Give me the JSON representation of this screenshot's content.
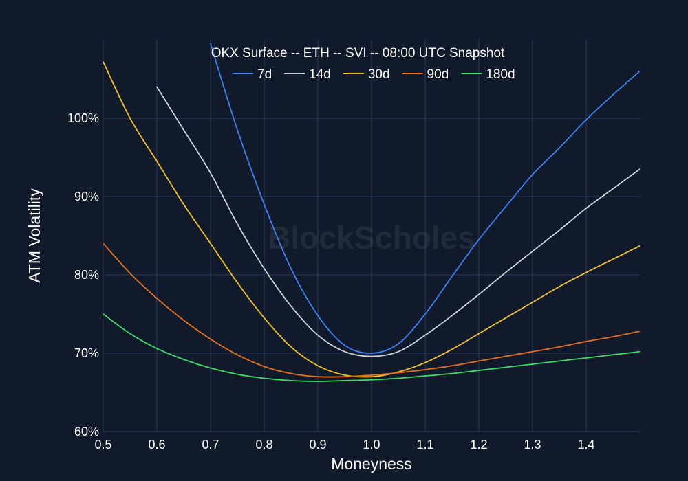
{
  "chart_data": {
    "type": "line",
    "title": "OKX Surface -- ETH -- SVI -- 08:00 UTC Snapshot",
    "xlabel": "Moneyness",
    "ylabel": "ATM Volatility",
    "xlim": [
      0.5,
      1.5
    ],
    "ylim": [
      60,
      109
    ],
    "xticks": [
      0.5,
      0.6,
      0.7,
      0.8,
      0.9,
      1.0,
      1.1,
      1.2,
      1.3,
      1.4
    ],
    "xtick_labels": [
      "0.5",
      "0.6",
      "0.7",
      "0.8",
      "0.9",
      "1.0",
      "1.1",
      "1.2",
      "1.3",
      "1.4"
    ],
    "yticks": [
      60,
      70,
      80,
      90,
      100
    ],
    "ytick_labels": [
      "60%",
      "70%",
      "80%",
      "90%",
      "100%"
    ],
    "grid": true,
    "legend_position": "top",
    "watermark": "BlockScholes",
    "x": [
      0.5,
      0.55,
      0.6,
      0.65,
      0.7,
      0.75,
      0.8,
      0.85,
      0.9,
      0.95,
      1.0,
      1.05,
      1.1,
      1.15,
      1.2,
      1.25,
      1.3,
      1.35,
      1.4,
      1.45,
      1.5
    ],
    "series": [
      {
        "name": "7d",
        "color": "#3b82f6",
        "values": [
          null,
          null,
          null,
          null,
          109.5,
          98.5,
          89.0,
          80.8,
          74.8,
          71.0,
          70.0,
          71.2,
          75.0,
          79.8,
          84.5,
          88.7,
          92.8,
          96.2,
          99.8,
          103.0,
          106.0
        ]
      },
      {
        "name": "14d",
        "color": "#cfd3da",
        "values": [
          null,
          null,
          104.0,
          98.5,
          93.0,
          86.5,
          80.8,
          76.0,
          72.3,
          70.2,
          69.6,
          70.2,
          72.3,
          74.8,
          77.5,
          80.3,
          83.0,
          85.7,
          88.5,
          91.0,
          93.5
        ]
      },
      {
        "name": "30d",
        "color": "#f5c518",
        "values": [
          107.2,
          100.0,
          94.5,
          89.0,
          84.0,
          79.0,
          74.5,
          70.8,
          68.4,
          67.2,
          67.0,
          67.6,
          68.8,
          70.5,
          72.5,
          74.5,
          76.5,
          78.5,
          80.3,
          82.0,
          83.7
        ]
      },
      {
        "name": "90d",
        "color": "#e8701a",
        "values": [
          84.0,
          80.2,
          77.0,
          74.2,
          71.8,
          69.8,
          68.3,
          67.4,
          67.0,
          67.0,
          67.2,
          67.5,
          67.9,
          68.4,
          69.0,
          69.6,
          70.2,
          70.8,
          71.5,
          72.1,
          72.8
        ]
      },
      {
        "name": "180d",
        "color": "#3ddc68",
        "values": [
          75.0,
          72.5,
          70.6,
          69.2,
          68.1,
          67.3,
          66.8,
          66.5,
          66.4,
          66.5,
          66.6,
          66.8,
          67.1,
          67.4,
          67.8,
          68.2,
          68.6,
          69.0,
          69.4,
          69.8,
          70.2
        ]
      }
    ]
  }
}
